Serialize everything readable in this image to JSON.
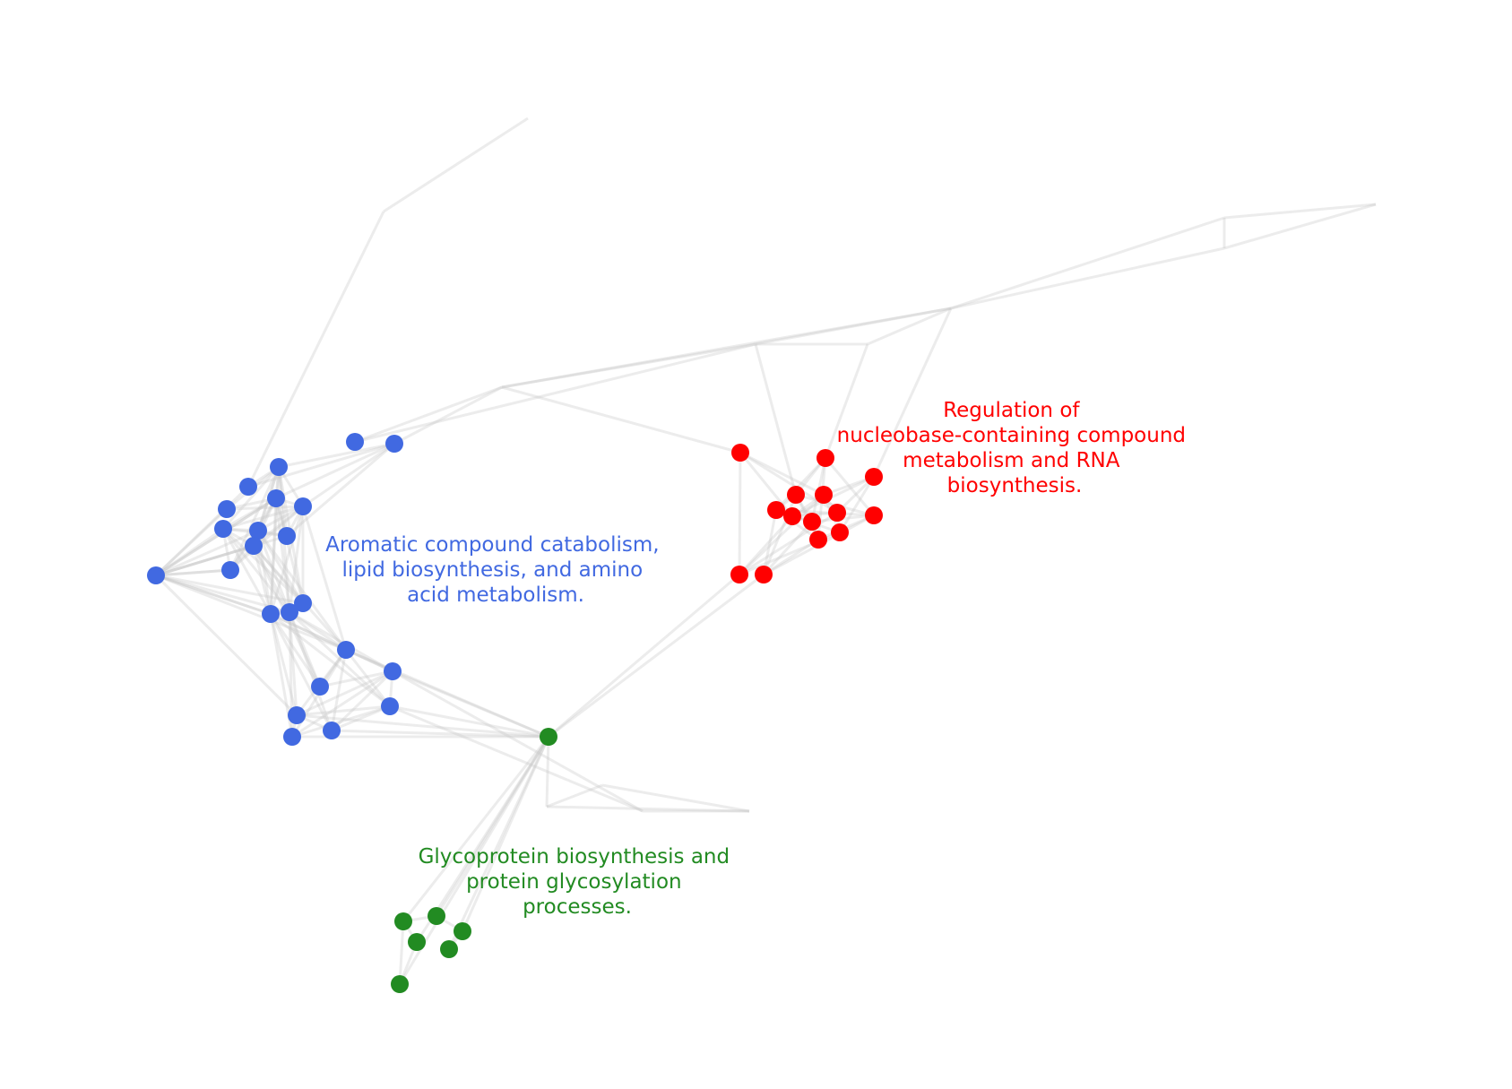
{
  "figure": {
    "edge_color": "#c8c8c8",
    "cluster_colors": {
      "blue": "#4169e1",
      "red": "#ff0000",
      "green": "#228b22"
    }
  },
  "clusters": [
    {
      "id": "blue",
      "label_lines": [
        "Aromatic compound catabolism,",
        "lipid biosynthesis, and amino",
        "acid metabolism."
      ]
    },
    {
      "id": "red",
      "label_lines": [
        "Regulation of",
        "nucleobase-containing compound",
        "metabolism and RNA",
        "biosynthesis."
      ]
    },
    {
      "id": "green",
      "label_lines": [
        "Glycoprotein biosynthesis and",
        "protein glycosylation",
        "processes."
      ]
    }
  ]
}
